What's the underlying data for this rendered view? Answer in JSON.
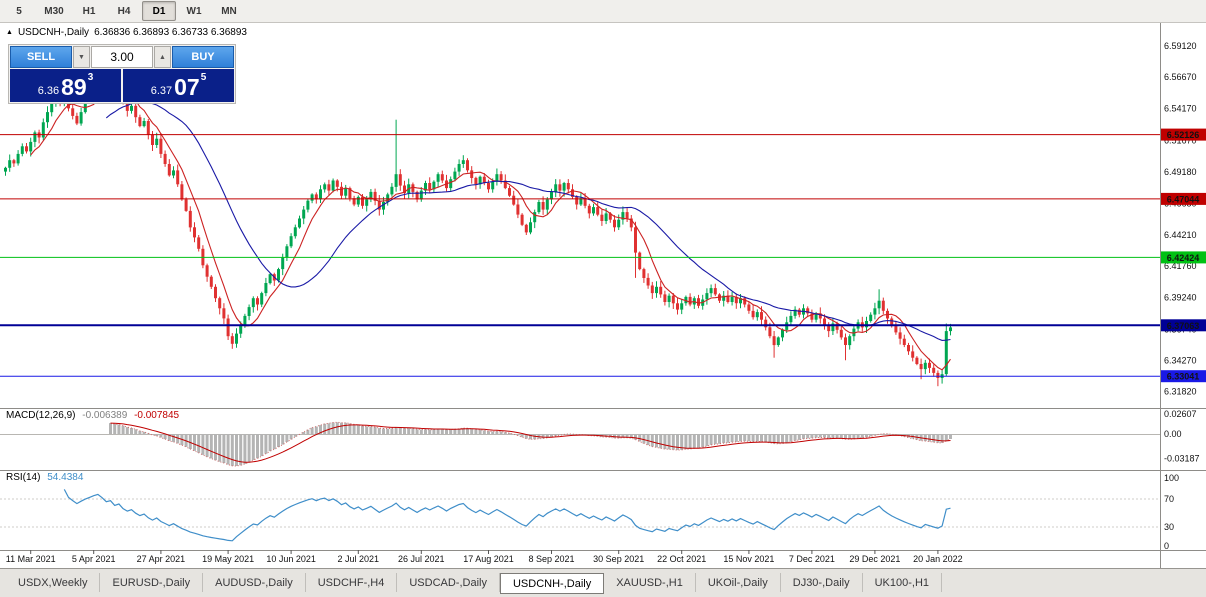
{
  "toolbar": {
    "timeframes": [
      {
        "label": "5",
        "active": false
      },
      {
        "label": "M30",
        "active": false
      },
      {
        "label": "H1",
        "active": false
      },
      {
        "label": "H4",
        "active": false
      },
      {
        "label": "D1",
        "active": true
      },
      {
        "label": "W1",
        "active": false
      },
      {
        "label": "MN",
        "active": false
      }
    ]
  },
  "chart": {
    "marker": "▲",
    "title_symbol": "USDCNH-,Daily",
    "title_ohlc": "6.36836 6.36893 6.36733 6.36893"
  },
  "trade_panel": {
    "sell_label": "SELL",
    "buy_label": "BUY",
    "volume": "3.00",
    "down_arrow": "▼",
    "up_arrow": "▲",
    "button_color": "#2f80d9",
    "button_color_light": "#5ea6ec",
    "price_box_color": "#0a2089",
    "bid": {
      "prefix": "6.36",
      "big": "89",
      "sup": "3"
    },
    "ask": {
      "prefix": "6.37",
      "big": "07",
      "sup": "5"
    }
  },
  "chart_data": {
    "type": "candlestick",
    "symbol": "USDCNH-",
    "timeframe": "Daily",
    "current_ohlc": {
      "open": "6.36836",
      "high": "6.36893",
      "low": "6.36733",
      "close": "6.36893"
    },
    "price_axis_ticks": [
      "6.59120",
      "6.56670",
      "6.54170",
      "6.51670",
      "6.49180",
      "6.46680",
      "6.44210",
      "6.41760",
      "6.39240",
      "6.36740",
      "6.34270",
      "6.31820"
    ],
    "levels": [
      {
        "label": "6.52126",
        "price": 6.52126,
        "color": "#c00000",
        "width": 1
      },
      {
        "label": "6.47044",
        "price": 6.47044,
        "color": "#c00000",
        "width": 1
      },
      {
        "label": "6.42424",
        "price": 6.42424,
        "color": "#00c114",
        "width": 1
      },
      {
        "label": "6.37063",
        "price": 6.37063,
        "color": "#000096",
        "width": 2
      },
      {
        "label": "6.33041",
        "price": 6.33041,
        "color": "#1919e6",
        "width": 1
      }
    ],
    "x_axis_labels": [
      {
        "label": "11 Mar 2021",
        "bar": 6
      },
      {
        "label": "5 Apr 2021",
        "bar": 21
      },
      {
        "label": "27 Apr 2021",
        "bar": 37
      },
      {
        "label": "19 May 2021",
        "bar": 53
      },
      {
        "label": "10 Jun 2021",
        "bar": 68
      },
      {
        "label": "2 Jul 2021",
        "bar": 84
      },
      {
        "label": "26 Jul 2021",
        "bar": 99
      },
      {
        "label": "17 Aug 2021",
        "bar": 115
      },
      {
        "label": "8 Sep 2021",
        "bar": 130
      },
      {
        "label": "30 Sep 2021",
        "bar": 146
      },
      {
        "label": "22 Oct 2021",
        "bar": 161
      },
      {
        "label": "15 Nov 2021",
        "bar": 177
      },
      {
        "label": "7 Dec 2021",
        "bar": 192
      },
      {
        "label": "29 Dec 2021",
        "bar": 207
      },
      {
        "label": "20 Jan 2022",
        "bar": 222
      }
    ],
    "first_open": 6.492,
    "closes": [
      6.495,
      6.501,
      6.4985,
      6.506,
      6.512,
      6.508,
      6.5155,
      6.523,
      6.519,
      6.531,
      6.539,
      6.546,
      6.552,
      6.548,
      6.555,
      6.542,
      6.536,
      6.53,
      6.539,
      6.548,
      6.556,
      6.565,
      6.572,
      6.566,
      6.558,
      6.562,
      6.552,
      6.557,
      6.546,
      6.54,
      6.544,
      6.535,
      6.528,
      6.532,
      6.521,
      6.513,
      6.518,
      6.506,
      6.498,
      6.489,
      6.493,
      6.482,
      6.47,
      6.461,
      6.448,
      6.44,
      6.431,
      6.418,
      6.409,
      6.401,
      6.392,
      6.384,
      6.376,
      6.362,
      6.356,
      6.364,
      6.371,
      6.378,
      6.385,
      6.392,
      6.387,
      6.396,
      6.404,
      6.411,
      6.406,
      6.415,
      6.424,
      6.433,
      6.441,
      6.448,
      6.455,
      6.462,
      6.469,
      6.474,
      6.47,
      6.478,
      6.482,
      6.477,
      6.485,
      6.48,
      6.473,
      6.479,
      6.471,
      6.466,
      6.472,
      6.465,
      6.47,
      6.476,
      6.469,
      6.462,
      6.468,
      6.474,
      6.48,
      6.49,
      6.481,
      6.475,
      6.482,
      6.476,
      6.47,
      6.477,
      6.483,
      6.478,
      6.484,
      6.49,
      6.485,
      6.479,
      6.486,
      6.492,
      6.498,
      6.501,
      6.493,
      6.487,
      6.482,
      6.488,
      6.483,
      6.478,
      6.484,
      6.49,
      6.485,
      6.479,
      6.473,
      6.466,
      6.458,
      6.45,
      6.444,
      6.452,
      6.46,
      6.468,
      6.462,
      6.47,
      6.476,
      6.482,
      6.477,
      6.483,
      6.478,
      6.472,
      6.466,
      6.471,
      6.465,
      6.459,
      6.464,
      6.458,
      6.453,
      6.459,
      6.454,
      6.448,
      6.454,
      6.46,
      6.455,
      6.448,
      6.428,
      6.415,
      6.408,
      6.402,
      6.396,
      6.401,
      6.395,
      6.389,
      6.394,
      6.388,
      6.383,
      6.388,
      6.393,
      6.387,
      6.392,
      6.386,
      6.391,
      6.396,
      6.4,
      6.395,
      6.39,
      6.394,
      6.389,
      6.393,
      6.388,
      6.392,
      6.387,
      6.382,
      6.377,
      6.381,
      6.375,
      6.369,
      6.362,
      6.355,
      6.361,
      6.367,
      6.373,
      6.378,
      6.383,
      6.379,
      6.384,
      6.38,
      6.375,
      6.38,
      6.376,
      6.371,
      6.366,
      6.372,
      6.367,
      6.361,
      6.355,
      6.362,
      6.368,
      6.373,
      6.369,
      6.374,
      6.379,
      6.384,
      6.39,
      6.382,
      6.376,
      6.37,
      6.365,
      6.36,
      6.355,
      6.35,
      6.345,
      6.34,
      6.336,
      6.341,
      6.337,
      6.333,
      6.329,
      6.332,
      6.366,
      6.3689
    ],
    "wick_overrides": {
      "22": {
        "h": 6.591
      },
      "54": {
        "l": 6.352
      },
      "93": {
        "h": 6.533
      },
      "109": {
        "h": 6.505
      },
      "150": {
        "l": 6.408
      },
      "183": {
        "l": 6.345
      },
      "200": {
        "l": 6.343
      },
      "208": {
        "h": 6.399
      },
      "218": {
        "l": 6.328
      },
      "222": {
        "l": 6.3225
      },
      "223": {
        "l": 6.3245
      },
      "224": {
        "h": 6.372
      }
    },
    "up_color": "#00a651",
    "down_color": "#e03131",
    "ma_fast_period": 7,
    "ma_slow_period": 25,
    "ma_fast_color": "#cc2222",
    "ma_slow_color": "#1a1aa6",
    "macd_panel": {
      "label": "MACD(12,26,9)",
      "values": [
        "-0.006389",
        "-0.007845"
      ],
      "value_colors": [
        "#808080",
        "#c00000"
      ],
      "ticks": [
        "0.02607",
        "0.00",
        "-0.03187"
      ],
      "histogram_color": "#b4b4b4",
      "signal_color": "#c00000"
    },
    "rsi_panel": {
      "label": "RSI(14)",
      "value": "54.4384",
      "value_color": "#3f8ec9",
      "ticks": [
        "100",
        "70",
        "30",
        "0"
      ],
      "line_color": "#3f8ec9"
    }
  },
  "tabs": [
    {
      "label": "USDX,Weekly",
      "active": false
    },
    {
      "label": "EURUSD-,Daily",
      "active": false
    },
    {
      "label": "AUDUSD-,Daily",
      "active": false
    },
    {
      "label": "USDCHF-,H4",
      "active": false
    },
    {
      "label": "USDCAD-,Daily",
      "active": false
    },
    {
      "label": "USDCNH-,Daily",
      "active": true
    },
    {
      "label": "XAUUSD-,H1",
      "active": false
    },
    {
      "label": "UKOil-,Daily",
      "active": false
    },
    {
      "label": "DJ30-,Daily",
      "active": false
    },
    {
      "label": "UK100-,H1",
      "active": false
    }
  ]
}
